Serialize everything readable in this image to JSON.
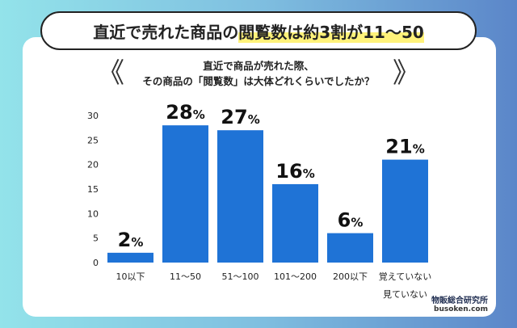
{
  "header": {
    "title_plain": "直近で売れた商品の",
    "title_highlight": "閲覧数は約3割が11〜50"
  },
  "question": {
    "line1": "直近で商品が売れた際、",
    "line2": "その商品の「閲覧数」は大体どれくらいでしたか？",
    "left_mark": "《",
    "right_mark": "》"
  },
  "colors": {
    "bar": "#1f73d6",
    "highlight": "#fff27a"
  },
  "chart_data": {
    "type": "bar",
    "categories": [
      "10以下",
      "11〜50",
      "51〜100",
      "101〜200",
      "200以下",
      "覚えていない\n見ていない"
    ],
    "values": [
      2,
      28,
      27,
      16,
      6,
      21
    ],
    "data_labels": [
      "2%",
      "28%",
      "27%",
      "16%",
      "6%",
      "21%"
    ],
    "yticks": [
      0,
      5,
      10,
      15,
      20,
      25,
      30
    ],
    "ylim": [
      0,
      30
    ],
    "grid": false
  },
  "logo": {
    "name": "物販総合研究所",
    "url": "busoken.com"
  }
}
